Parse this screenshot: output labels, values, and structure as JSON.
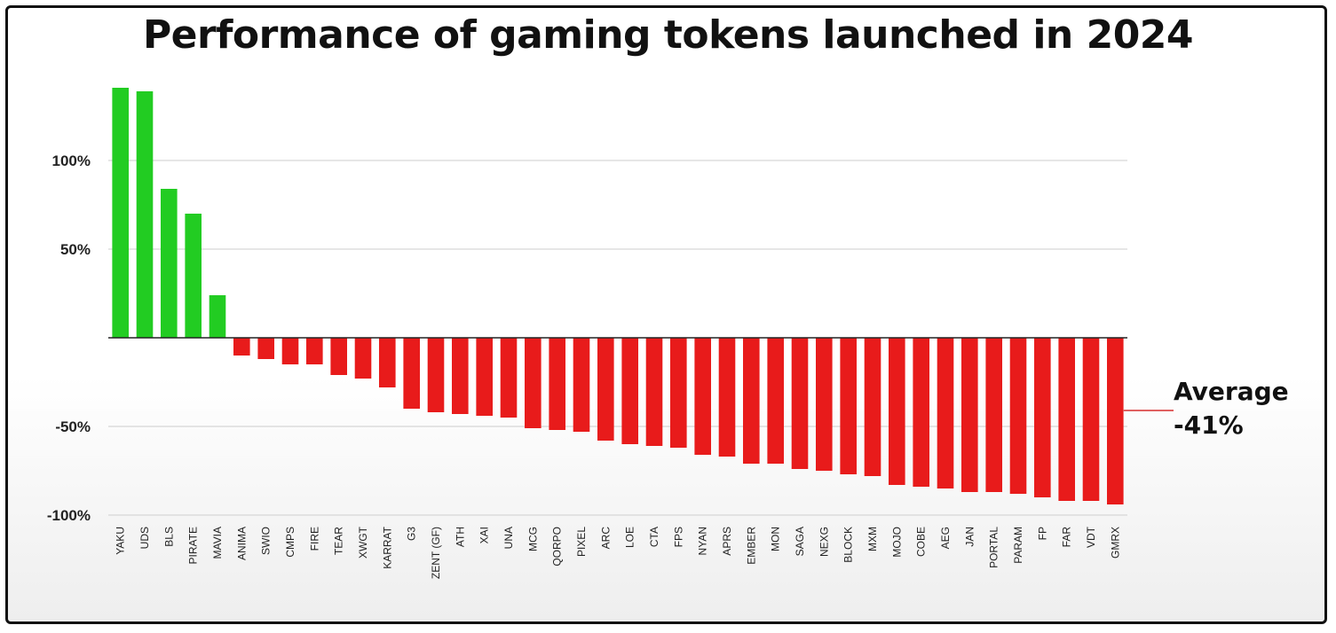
{
  "chart_data": {
    "type": "bar",
    "title": "Performance of gaming tokens launched in 2024",
    "xlabel": "",
    "ylabel": "",
    "ylim": [
      -100,
      140
    ],
    "yticks": [
      {
        "value": 100,
        "label": "100%"
      },
      {
        "value": 50,
        "label": "50%"
      },
      {
        "value": -50,
        "label": "-50%"
      },
      {
        "value": -100,
        "label": "-100%"
      }
    ],
    "grid": true,
    "colors": {
      "positive": "#22cc22",
      "negative": "#e81b1b",
      "average": "#e06060"
    },
    "categories": [
      "YAKU",
      "UDS",
      "BLS",
      "PIRATE",
      "MAVIA",
      "ANIMA",
      "SWIO",
      "CMPS",
      "FIRE",
      "TEAR",
      "XWGT",
      "KARRAT",
      "G3",
      "ZENT (GF)",
      "ATH",
      "XAI",
      "UNA",
      "MCG",
      "QORPO",
      "PIXEL",
      "ARC",
      "LOE",
      "CTA",
      "FPS",
      "NYAN",
      "APRS",
      "EMBER",
      "MON",
      "SAGA",
      "NEXG",
      "BLOCK",
      "MXM",
      "MOJO",
      "COBE",
      "AEG",
      "JAN",
      "PORTAL",
      "PARAM",
      "FP",
      "FAR",
      "VDT",
      "GMRX"
    ],
    "values": [
      141,
      139,
      84,
      70,
      24,
      -10,
      -12,
      -15,
      -15,
      -21,
      -23,
      -28,
      -40,
      -42,
      -43,
      -44,
      -45,
      -51,
      -52,
      -53,
      -58,
      -60,
      -61,
      -62,
      -66,
      -67,
      -71,
      -71,
      -74,
      -75,
      -77,
      -78,
      -83,
      -84,
      -85,
      -87,
      -87,
      -88,
      -90,
      -92,
      -92,
      -94
    ],
    "average": {
      "value": -41,
      "label_line1": "Average",
      "label_line2": "-41%"
    }
  }
}
